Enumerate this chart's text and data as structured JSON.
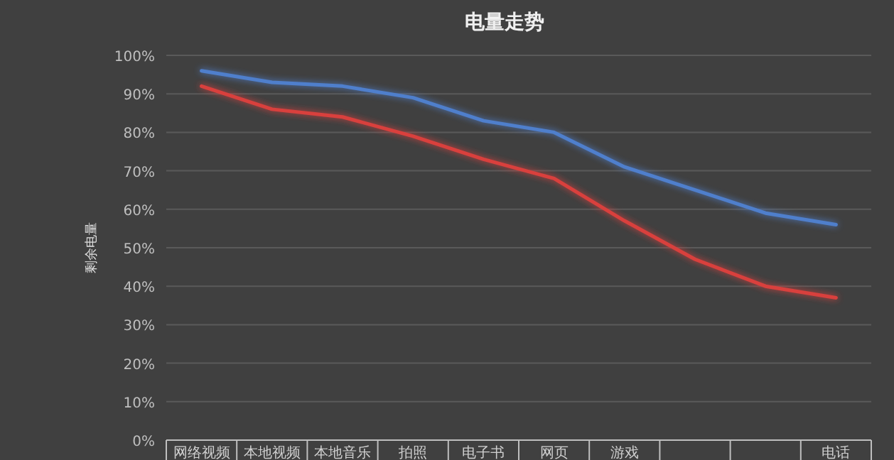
{
  "chart_data": {
    "type": "line",
    "title": "电量走势",
    "ylabel": "剩余电量",
    "categories": [
      "网络视频",
      "本地视频",
      "本地音乐",
      "拍照",
      "电子书",
      "网页",
      "游戏",
      null,
      null,
      "电话"
    ],
    "series": [
      {
        "color": "#4f7fcc",
        "values": [
          96,
          93,
          92,
          89,
          83,
          80,
          71,
          65,
          59,
          56
        ]
      },
      {
        "color": "#d9403e",
        "values": [
          92,
          86,
          84,
          79,
          73,
          68,
          57,
          47,
          40,
          37
        ]
      }
    ],
    "ylim": [
      0,
      100
    ],
    "yticks": [
      {
        "value": 0,
        "label": "0%"
      },
      {
        "value": 10,
        "label": "10%"
      },
      {
        "value": 20,
        "label": "20%"
      },
      {
        "value": 30,
        "label": "30%"
      },
      {
        "value": 40,
        "label": "40%"
      },
      {
        "value": 50,
        "label": "50%"
      },
      {
        "value": 60,
        "label": "60%"
      },
      {
        "value": 70,
        "label": "70%"
      },
      {
        "value": 80,
        "label": "80%"
      },
      {
        "value": 90,
        "label": "90%"
      },
      {
        "value": 100,
        "label": "100%"
      }
    ],
    "grid": "y",
    "marker": "none",
    "line_style": "solid"
  }
}
